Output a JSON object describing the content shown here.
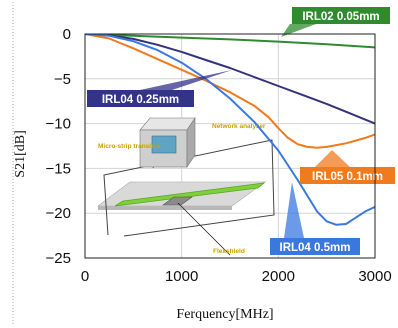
{
  "chart_data": {
    "type": "line",
    "xlabel": "Ferquency[MHz]",
    "ylabel": "S21[dB]",
    "xlim": [
      0,
      3000
    ],
    "ylim": [
      -25,
      0
    ],
    "x_ticks": [
      0,
      1000,
      2000,
      3000
    ],
    "y_ticks": [
      0,
      -5,
      -10,
      -15,
      -20,
      -25
    ],
    "x_tick_labels": [
      "0",
      "1000",
      "2000",
      "3000"
    ],
    "y_tick_labels": [
      "0",
      "−5",
      "−10",
      "−15",
      "−20",
      "−25"
    ],
    "grid": true,
    "series": [
      {
        "name": "IRL02 0.05mm",
        "color": "#2e8b2e",
        "x": [
          0,
          500,
          1000,
          1500,
          2000,
          2500,
          3000
        ],
        "y": [
          0,
          -0.2,
          -0.4,
          -0.6,
          -0.85,
          -1.15,
          -1.5
        ]
      },
      {
        "name": "IRL04 0.25mm",
        "color": "#33337a",
        "x": [
          0,
          250,
          500,
          750,
          1000,
          1250,
          1500,
          1750,
          2000,
          2250,
          2500,
          2750,
          3000
        ],
        "y": [
          0,
          -0.15,
          -0.55,
          -1.2,
          -2.0,
          -2.9,
          -3.8,
          -4.8,
          -5.8,
          -6.8,
          -7.8,
          -8.9,
          -10.0
        ]
      },
      {
        "name": "IRL05 0.1mm",
        "color": "#f07a1e",
        "x": [
          0,
          250,
          500,
          750,
          1000,
          1250,
          1500,
          1750,
          1900,
          2000,
          2100,
          2200,
          2300,
          2400,
          2500,
          2600,
          2700,
          2800,
          2900,
          3000
        ],
        "y": [
          0,
          -0.5,
          -1.6,
          -2.8,
          -4.0,
          -5.2,
          -6.5,
          -8.0,
          -9.3,
          -10.5,
          -11.6,
          -12.3,
          -12.6,
          -12.7,
          -12.6,
          -12.4,
          -12.2,
          -11.9,
          -11.6,
          -11.2
        ]
      },
      {
        "name": "IRL04 0.5mm",
        "color": "#3a78e0",
        "x": [
          0,
          250,
          500,
          750,
          1000,
          1250,
          1500,
          1750,
          2000,
          2200,
          2400,
          2500,
          2600,
          2700,
          2800,
          2900,
          3000
        ],
        "y": [
          0,
          -0.2,
          -0.8,
          -1.8,
          -3.2,
          -5.0,
          -7.2,
          -9.8,
          -13.0,
          -16.3,
          -19.8,
          -20.9,
          -21.3,
          -21.2,
          -20.5,
          -19.8,
          -19.3
        ]
      }
    ],
    "callouts": [
      {
        "text": "IRL02 0.05mm",
        "color": "#2e8b2e"
      },
      {
        "text": "IRL04 0.25mm",
        "color": "#333388"
      },
      {
        "text": "IRL05 0.1mm",
        "color": "#f07a1e"
      },
      {
        "text": "IRL04 0.5mm",
        "color": "#3a78e0"
      }
    ],
    "inset": {
      "labels": [
        "Network analyzer",
        "Micro-strip transline",
        "Flexshield"
      ]
    }
  }
}
